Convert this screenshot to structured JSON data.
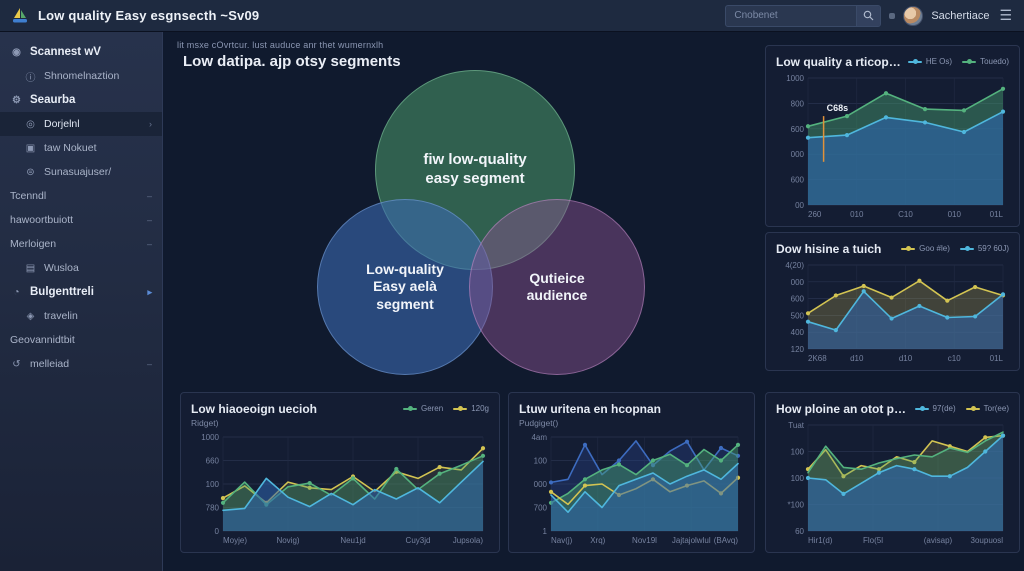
{
  "colors": {
    "accent_cyan": "#4fb7dd",
    "accent_green": "#54b27e",
    "accent_yellow": "#d3c452",
    "accent_blue": "#3d6cc0",
    "accent_orange": "#e0923a",
    "venn_green": "#489468",
    "venn_blue": "#3a69b0",
    "venn_purple": "#87528e"
  },
  "topbar": {
    "title": "Low quality Easy esgnsecth ~Sv09",
    "search_placeholder": "Cnobenet",
    "username": "Sachertiace"
  },
  "sidebar": {
    "items": [
      {
        "label": "Scannest wV",
        "icon": "scan-icon",
        "bold": true,
        "indent": 0,
        "trail": ""
      },
      {
        "label": "Shnomelnaztion",
        "icon": "info-icon",
        "bold": false,
        "indent": 1,
        "trail": ""
      },
      {
        "label": "Seaurba",
        "icon": "gear-icon",
        "bold": true,
        "indent": 0,
        "trail": ""
      },
      {
        "label": "Dorjelnl",
        "icon": "target-icon",
        "bold": false,
        "indent": 1,
        "trail": "›",
        "selected": true
      },
      {
        "label": "taw Nokuet",
        "icon": "ticket-icon",
        "bold": false,
        "indent": 1,
        "trail": ""
      },
      {
        "label": "Sunasuajuser/",
        "icon": "users-icon",
        "bold": false,
        "indent": 1,
        "trail": ""
      },
      {
        "label": "Tcenndl",
        "icon": "",
        "bold": false,
        "indent": 0,
        "trail": "–"
      },
      {
        "label": "hawoortbuiott",
        "icon": "",
        "bold": false,
        "indent": 0,
        "trail": "–"
      },
      {
        "label": "Merloigen",
        "icon": "",
        "bold": false,
        "indent": 0,
        "trail": "–"
      },
      {
        "label": "Wusloa",
        "icon": "folder-icon",
        "bold": false,
        "indent": 1,
        "trail": ""
      },
      {
        "label": "Bulgenttreli",
        "icon": "budget-icon",
        "bold": true,
        "indent": 0,
        "trail": "▸",
        "trail_blue": true
      },
      {
        "label": "travelin",
        "icon": "shield-icon",
        "bold": false,
        "indent": 1,
        "trail": ""
      },
      {
        "label": "Geovannidtbit",
        "icon": "",
        "bold": false,
        "indent": 0,
        "trail": ""
      },
      {
        "label": "melleiad",
        "icon": "history-icon",
        "bold": false,
        "indent": 0,
        "trail": "–"
      }
    ]
  },
  "main": {
    "kicker": "lit msxe cOvrtcur. lust auduce anr thet wumernxlh",
    "title": "Low datipa. ajp otsy segments",
    "venn": {
      "top_label": "fiw low-quality\neasy segment",
      "left_label": "Low-quality\nEasy aelà\nsegment",
      "right_label": "Qutieice\naudience"
    }
  },
  "chart_data": [
    {
      "id": "quality-trend",
      "type": "area",
      "title": "Low quality a rticopon",
      "subtitle": "",
      "legend": [
        {
          "name": "HE Os)",
          "color": "#4fb7dd"
        },
        {
          "name": "Touedo)",
          "color": "#54b27e"
        }
      ],
      "ylim": [
        0,
        1000
      ],
      "y_ticks": [
        "1000",
        "800",
        "600",
        "000",
        "600",
        "00"
      ],
      "x_ticks": [
        "260",
        "010",
        "C10",
        "010",
        "01L"
      ],
      "annotation": {
        "text": "C68s",
        "x_frac": 0.08,
        "color": "#e0923a"
      },
      "series": [
        {
          "name": "Touedo)",
          "color": "#54b27e",
          "fill_color": "rgba(70,160,110,0.45)",
          "markers": true,
          "values": [
            620,
            700,
            880,
            755,
            745,
            915
          ]
        },
        {
          "name": "HE Os)",
          "color": "#4fb7dd",
          "fill_color": "rgba(45,100,175,0.60)",
          "markers": true,
          "values": [
            530,
            550,
            690,
            650,
            575,
            735
          ]
        }
      ]
    },
    {
      "id": "dow-hisine",
      "type": "area",
      "title": "Dow hisine a tuich",
      "subtitle": "",
      "legend": [
        {
          "name": "Goo #le)",
          "color": "#d3c452"
        },
        {
          "name": "59? 60J)",
          "color": "#4fb7dd"
        }
      ],
      "ylim": [
        300,
        700
      ],
      "y_ticks": [
        "4(20)",
        "000",
        "600",
        "500",
        "400",
        "120"
      ],
      "x_ticks": [
        "2K68",
        "d10",
        "d10",
        "c10",
        "01L"
      ],
      "series": [
        {
          "name": "Goo #le)",
          "color": "#d3c452",
          "fill_color": "rgba(200,185,80,0.25)",
          "markers": true,
          "values": [
            470,
            555,
            600,
            545,
            625,
            530,
            595,
            555
          ]
        },
        {
          "name": "59? 60J)",
          "color": "#4fb7dd",
          "fill_color": "rgba(45,100,175,0.55)",
          "markers": true,
          "values": [
            430,
            390,
            575,
            445,
            505,
            450,
            455,
            560
          ]
        }
      ]
    },
    {
      "id": "low-hiaoeoign",
      "type": "area",
      "title": "Low hiaoeoign uecioh",
      "subtitle": "Ridget)",
      "legend": [
        {
          "name": "Geren",
          "color": "#54b27e"
        },
        {
          "name": "120g",
          "color": "#d3c452"
        }
      ],
      "ylim": [
        0,
        1000
      ],
      "y_ticks": [
        "1000",
        "660",
        "100",
        "780",
        "0"
      ],
      "x_ticks": [
        "Moyje)",
        "Novig)",
        "Neu1jd",
        "Cuy3jd",
        "Jupsola)"
      ],
      "series": [
        {
          "name": "120g",
          "color": "#d3c452",
          "fill_color": "rgba(200,185,80,0.12)",
          "markers": true,
          "values": [
            350,
            480,
            300,
            520,
            460,
            440,
            580,
            420,
            630,
            560,
            680,
            650,
            880
          ]
        },
        {
          "name": "Geren",
          "color": "#54b27e",
          "fill_color": "rgba(70,160,110,0.35)",
          "markers": true,
          "values": [
            300,
            520,
            280,
            470,
            510,
            380,
            560,
            340,
            660,
            440,
            610,
            700,
            800
          ]
        },
        {
          "name": "cyan",
          "color": "#4fb7dd",
          "fill_color": "rgba(45,100,175,0.55)",
          "markers": false,
          "values": [
            220,
            240,
            560,
            360,
            260,
            400,
            280,
            440,
            340,
            460,
            300,
            520,
            740
          ]
        }
      ]
    },
    {
      "id": "ltuw-uritena",
      "type": "area",
      "title": "Ltuw uritena en hcopnan",
      "subtitle": "Pudgiget()",
      "legend": [],
      "ylim": [
        0,
        1200
      ],
      "y_ticks": [
        "4am",
        "100",
        "000",
        "700",
        "1"
      ],
      "x_ticks": [
        "Nav(j)",
        "Xrq)",
        "Nov19l",
        "Jajtajolwlul",
        "(BAvq)"
      ],
      "series": [
        {
          "name": "navy",
          "color": "#3d6cc0",
          "fill_color": "rgba(40,70,140,0.35)",
          "markers": true,
          "values": [
            620,
            660,
            1100,
            720,
            900,
            1150,
            840,
            1020,
            1140,
            780,
            1060,
            960
          ]
        },
        {
          "name": "green",
          "color": "#54b27e",
          "fill_color": "rgba(70,160,110,0.45)",
          "markers": true,
          "values": [
            360,
            480,
            660,
            780,
            850,
            720,
            900,
            980,
            840,
            1040,
            900,
            1100
          ]
        },
        {
          "name": "yellow",
          "color": "#d3c452",
          "fill_color": "",
          "markers": true,
          "values": [
            500,
            340,
            580,
            600,
            460,
            540,
            660,
            500,
            580,
            640,
            480,
            680
          ]
        },
        {
          "name": "cyan",
          "color": "#4fb7dd",
          "fill_color": "rgba(45,100,175,0.50)",
          "markers": false,
          "values": [
            460,
            240,
            500,
            300,
            580,
            660,
            740,
            600,
            700,
            780,
            660,
            860
          ]
        }
      ]
    },
    {
      "id": "how-ploine",
      "type": "area",
      "title": "How ploine an otot piors!",
      "subtitle": "",
      "legend": [
        {
          "name": "97(de)",
          "color": "#4fb7dd"
        },
        {
          "name": "Tor(ee)",
          "color": "#d3c452"
        }
      ],
      "ylim": [
        0,
        120
      ],
      "y_ticks": [
        "Tuat",
        "100",
        "100",
        "*100",
        "60"
      ],
      "x_ticks": [
        "Hir1(d)",
        "Flo(5l",
        "(avisap)",
        "3oupuosl"
      ],
      "series": [
        {
          "name": "Tor(ee)",
          "color": "#d3c452",
          "fill_color": "rgba(200,185,80,0.18)",
          "markers": true,
          "values": [
            70,
            92,
            62,
            74,
            70,
            84,
            78,
            102,
            96,
            90,
            106,
            108
          ]
        },
        {
          "name": "green",
          "color": "#54b27e",
          "fill_color": "rgba(70,160,110,0.30)",
          "markers": false,
          "values": [
            66,
            96,
            72,
            70,
            77,
            82,
            86,
            84,
            94,
            89,
            102,
            112
          ]
        },
        {
          "name": "97(de)",
          "color": "#4fb7dd",
          "fill_color": "rgba(45,100,175,0.60)",
          "markers": true,
          "values": [
            60,
            58,
            42,
            54,
            66,
            74,
            70,
            62,
            62,
            72,
            90,
            108
          ]
        }
      ]
    }
  ]
}
